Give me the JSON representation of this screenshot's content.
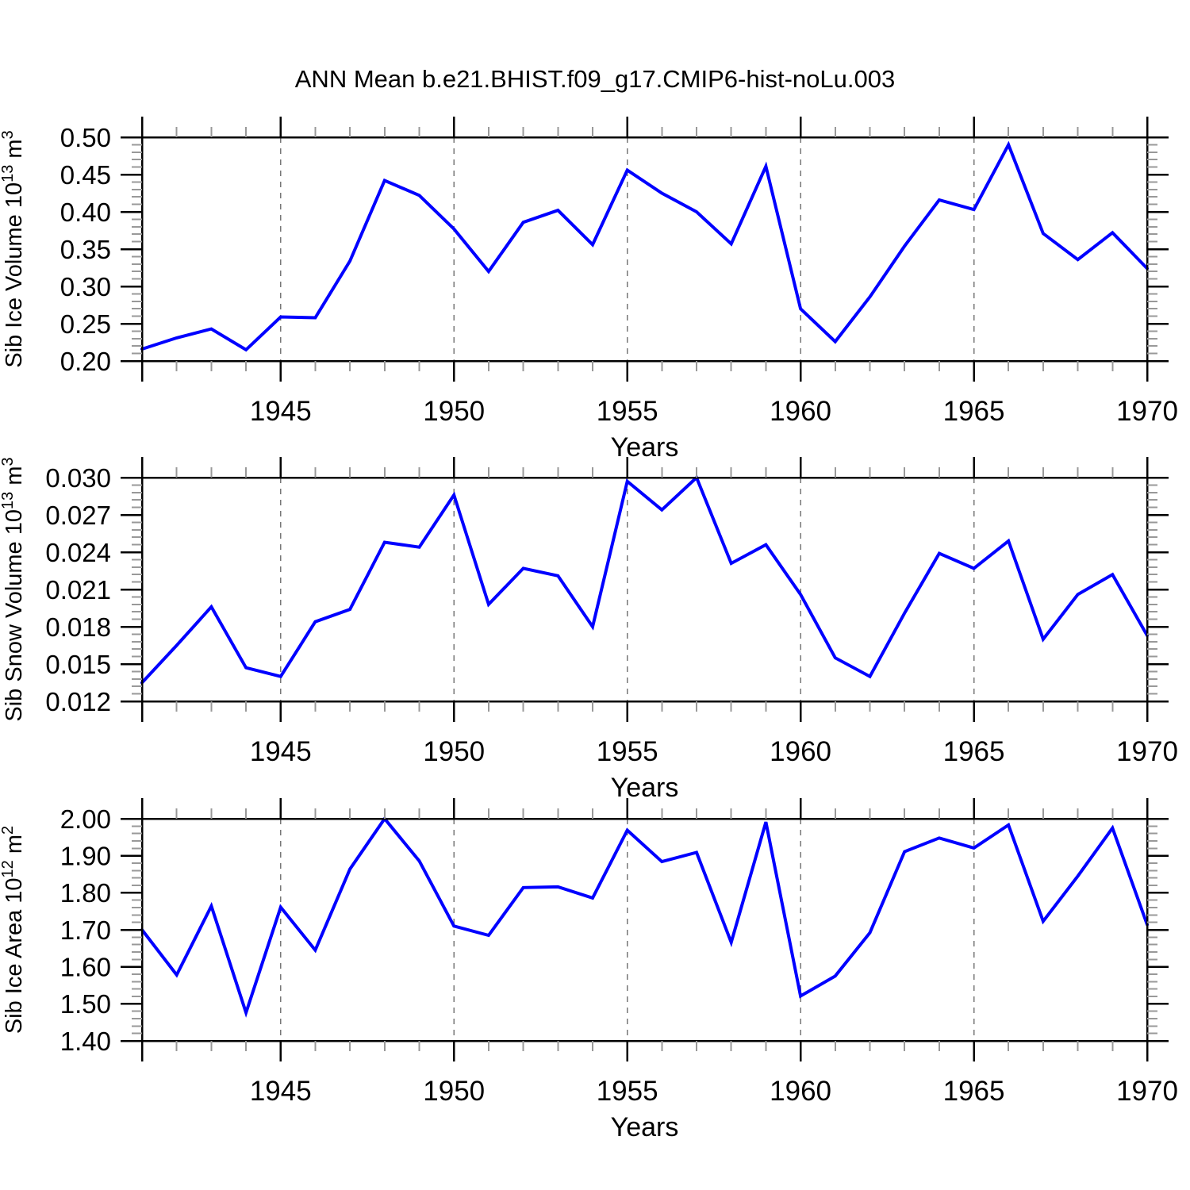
{
  "title": "ANN Mean b.e21.BHIST.f09_g17.CMIP6-hist-noLu.003",
  "colors": {
    "line": "#0000ff",
    "axis": "#000000",
    "grid": "#777777",
    "minor_tick": "#999999",
    "text": "#000000",
    "background": "#ffffff"
  },
  "chart_data": [
    {
      "type": "line",
      "panel": "sib-ice-volume",
      "ylabel_text": "Sib Ice Volume 10^13 m^3",
      "ylabel_parts": [
        {
          "t": "Sib Ice Volume 10"
        },
        {
          "t": "13",
          "sup": true
        },
        {
          "t": " m"
        },
        {
          "t": "3",
          "sup": true
        }
      ],
      "xlabel": "Years",
      "xlim": [
        1941,
        1970
      ],
      "ylim": [
        0.2,
        0.5
      ],
      "yticks": [
        0.2,
        0.25,
        0.3,
        0.35,
        0.4,
        0.45,
        0.5
      ],
      "ytick_labels": [
        "0.20",
        "0.25",
        "0.30",
        "0.35",
        "0.40",
        "0.45",
        "0.50"
      ],
      "y_minor_step": 0.01,
      "xticks": [
        1945,
        1950,
        1955,
        1960,
        1965,
        1970
      ],
      "x_end_ticks": [
        1941
      ],
      "x_gridlines": [
        1945,
        1950,
        1955,
        1960,
        1965
      ],
      "x": [
        1941,
        1942,
        1943,
        1944,
        1945,
        1946,
        1947,
        1948,
        1949,
        1950,
        1951,
        1952,
        1953,
        1954,
        1955,
        1956,
        1957,
        1958,
        1959,
        1960,
        1961,
        1962,
        1963,
        1964,
        1965,
        1966,
        1967,
        1968,
        1969,
        1970
      ],
      "values": [
        0.216,
        0.231,
        0.243,
        0.215,
        0.259,
        0.258,
        0.334,
        0.442,
        0.422,
        0.377,
        0.32,
        0.386,
        0.402,
        0.356,
        0.456,
        0.425,
        0.4,
        0.357,
        0.461,
        0.27,
        0.226,
        0.286,
        0.354,
        0.416,
        0.403,
        0.49,
        0.371,
        0.336,
        0.372,
        0.324
      ],
      "grid": "vertical-dashed",
      "legend": "none"
    },
    {
      "type": "line",
      "panel": "sib-snow-volume",
      "ylabel_text": "Sib Snow Volume 10^13 m^3",
      "ylabel_parts": [
        {
          "t": "Sib Snow Volume 10"
        },
        {
          "t": "13",
          "sup": true
        },
        {
          "t": " m"
        },
        {
          "t": "3",
          "sup": true
        }
      ],
      "xlabel": "Years",
      "xlim": [
        1941,
        1970
      ],
      "ylim": [
        0.012,
        0.03
      ],
      "yticks": [
        0.012,
        0.015,
        0.018,
        0.021,
        0.024,
        0.027,
        0.03
      ],
      "ytick_labels": [
        "0.012",
        "0.015",
        "0.018",
        "0.021",
        "0.024",
        "0.027",
        "0.030"
      ],
      "y_minor_step": 0.0006,
      "xticks": [
        1945,
        1950,
        1955,
        1960,
        1965,
        1970
      ],
      "x_end_ticks": [
        1941
      ],
      "x_gridlines": [
        1945,
        1950,
        1955,
        1960,
        1965
      ],
      "x": [
        1941,
        1942,
        1943,
        1944,
        1945,
        1946,
        1947,
        1948,
        1949,
        1950,
        1951,
        1952,
        1953,
        1954,
        1955,
        1956,
        1957,
        1958,
        1959,
        1960,
        1961,
        1962,
        1963,
        1964,
        1965,
        1966,
        1967,
        1968,
        1969,
        1970
      ],
      "values": [
        0.0135,
        0.0165,
        0.0196,
        0.0147,
        0.014,
        0.0184,
        0.0194,
        0.0248,
        0.0244,
        0.0286,
        0.0198,
        0.0227,
        0.0221,
        0.018,
        0.0297,
        0.0274,
        0.03,
        0.0231,
        0.0246,
        0.0206,
        0.0155,
        0.014,
        0.0191,
        0.0239,
        0.0227,
        0.0249,
        0.017,
        0.0206,
        0.0222,
        0.0173
      ],
      "grid": "vertical-dashed",
      "legend": "none"
    },
    {
      "type": "line",
      "panel": "sib-ice-area",
      "ylabel_text": "Sib Ice Area 10^12 m^2",
      "ylabel_parts": [
        {
          "t": "Sib Ice Area 10"
        },
        {
          "t": "12",
          "sup": true
        },
        {
          "t": " m"
        },
        {
          "t": "2",
          "sup": true
        }
      ],
      "xlabel": "Years",
      "xlim": [
        1941,
        1970
      ],
      "ylim": [
        1.4,
        2.0
      ],
      "yticks": [
        1.4,
        1.5,
        1.6,
        1.7,
        1.8,
        1.9,
        2.0
      ],
      "ytick_labels": [
        "1.40",
        "1.50",
        "1.60",
        "1.70",
        "1.80",
        "1.90",
        "2.00"
      ],
      "y_minor_step": 0.02,
      "xticks": [
        1945,
        1950,
        1955,
        1960,
        1965,
        1970
      ],
      "x_end_ticks": [
        1941
      ],
      "x_gridlines": [
        1945,
        1950,
        1955,
        1960,
        1965
      ],
      "x": [
        1941,
        1942,
        1943,
        1944,
        1945,
        1946,
        1947,
        1948,
        1949,
        1950,
        1951,
        1952,
        1953,
        1954,
        1955,
        1956,
        1957,
        1958,
        1959,
        1960,
        1961,
        1962,
        1963,
        1964,
        1965,
        1966,
        1967,
        1968,
        1969,
        1970
      ],
      "values": [
        1.7,
        1.578,
        1.764,
        1.476,
        1.761,
        1.645,
        1.864,
        2.0,
        1.886,
        1.71,
        1.685,
        1.814,
        1.816,
        1.786,
        1.969,
        1.884,
        1.909,
        1.666,
        1.991,
        1.521,
        1.575,
        1.692,
        1.911,
        1.948,
        1.921,
        1.983,
        1.723,
        1.845,
        1.975,
        1.714
      ],
      "grid": "vertical-dashed",
      "legend": "none"
    }
  ]
}
